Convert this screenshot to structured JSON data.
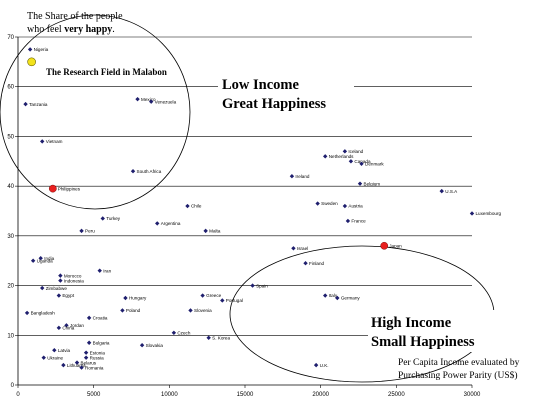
{
  "chart_data": {
    "type": "scatter",
    "ylabel_lines": [
      "The Share of the people",
      "who feel "
    ],
    "ylabel_bold": "very happy",
    "ylabel_tail": ".",
    "xlabel_lines": [
      "Per Capita Income evaluated by",
      "Purchasing Power Parity (US$)"
    ],
    "xlim": [
      0,
      30000
    ],
    "ylim": [
      0,
      70
    ],
    "x_ticks": [
      "0",
      "5000",
      "10000",
      "15000",
      "20000",
      "25000",
      "30000"
    ],
    "y_ticks": [
      "0",
      "10",
      "20",
      "30",
      "40",
      "50",
      "60",
      "70"
    ],
    "gridlines": "horizontal",
    "annotations": {
      "research_field": "The Research Field in Malabon",
      "low_income": [
        "Low Income",
        "Great Happiness"
      ],
      "high_income": [
        "High Income",
        "Small Happiness"
      ]
    },
    "colors": {
      "marker": "#1f1f6e",
      "highlight": "#e8201f",
      "research": "#f2e21b"
    },
    "points": [
      {
        "label": "Nigeria",
        "x": 800,
        "y": 67.5
      },
      {
        "label": "Tanzania",
        "x": 500,
        "y": 56.5
      },
      {
        "label": "Vietnam",
        "x": 1600,
        "y": 49
      },
      {
        "label": "Mexico",
        "x": 7900,
        "y": 57.5
      },
      {
        "label": "Venezuela",
        "x": 8800,
        "y": 57
      },
      {
        "label": "South Africa",
        "x": 7600,
        "y": 43
      },
      {
        "label": "Philippines",
        "x": 2300,
        "y": 39.5,
        "highlight": true
      },
      {
        "label": "Turkey",
        "x": 5600,
        "y": 33.5
      },
      {
        "label": "Chile",
        "x": 11200,
        "y": 36
      },
      {
        "label": "Argentina",
        "x": 9200,
        "y": 32.5
      },
      {
        "label": "Malta",
        "x": 12400,
        "y": 31
      },
      {
        "label": "Peru",
        "x": 4200,
        "y": 31
      },
      {
        "label": "India",
        "x": 1500,
        "y": 25.5
      },
      {
        "label": "Uganda",
        "x": 1000,
        "y": 25
      },
      {
        "label": "Iran",
        "x": 5400,
        "y": 23
      },
      {
        "label": "Morocco",
        "x": 2800,
        "y": 22
      },
      {
        "label": "Indonesia",
        "x": 2800,
        "y": 21
      },
      {
        "label": "Zimbabwe",
        "x": 1600,
        "y": 19.5
      },
      {
        "label": "Egypt",
        "x": 2700,
        "y": 18
      },
      {
        "label": "Hungary",
        "x": 7100,
        "y": 17.5
      },
      {
        "label": "Poland",
        "x": 6900,
        "y": 15
      },
      {
        "label": "Bangladesh",
        "x": 600,
        "y": 14.5
      },
      {
        "label": "Croatia",
        "x": 4700,
        "y": 13.5
      },
      {
        "label": "Jordan",
        "x": 3200,
        "y": 12
      },
      {
        "label": "China",
        "x": 2700,
        "y": 11.5
      },
      {
        "label": "Greece",
        "x": 12200,
        "y": 18
      },
      {
        "label": "Portugal",
        "x": 13500,
        "y": 17
      },
      {
        "label": "Slovenia",
        "x": 11400,
        "y": 15
      },
      {
        "label": "Czech",
        "x": 10300,
        "y": 10.5
      },
      {
        "label": "S. Korea",
        "x": 12600,
        "y": 9.5
      },
      {
        "label": "Slovakia",
        "x": 8200,
        "y": 8
      },
      {
        "label": "Bulgaria",
        "x": 4700,
        "y": 8.5
      },
      {
        "label": "Latvia",
        "x": 2400,
        "y": 7
      },
      {
        "label": "Estonia",
        "x": 4500,
        "y": 6.5
      },
      {
        "label": "Ukraine",
        "x": 1700,
        "y": 5.5
      },
      {
        "label": "Russia",
        "x": 4500,
        "y": 5.5
      },
      {
        "label": "Belarus",
        "x": 3900,
        "y": 4.5
      },
      {
        "label": "Lithuania",
        "x": 3000,
        "y": 4
      },
      {
        "label": "Romania",
        "x": 4200,
        "y": 3.5
      },
      {
        "label": "Spain",
        "x": 15500,
        "y": 20
      },
      {
        "label": "Netherlands",
        "x": 20300,
        "y": 46
      },
      {
        "label": "Iceland",
        "x": 21600,
        "y": 47
      },
      {
        "label": "Canada",
        "x": 22000,
        "y": 45
      },
      {
        "label": "Denmark",
        "x": 22700,
        "y": 44.5
      },
      {
        "label": "Ireland",
        "x": 18100,
        "y": 42
      },
      {
        "label": "Belgium",
        "x": 22600,
        "y": 40.5
      },
      {
        "label": "U.S.A",
        "x": 28000,
        "y": 39
      },
      {
        "label": "Sweden",
        "x": 19800,
        "y": 36.5
      },
      {
        "label": "Austria",
        "x": 21600,
        "y": 36
      },
      {
        "label": "Luxembourg",
        "x": 30000,
        "y": 34.5
      },
      {
        "label": "France",
        "x": 21800,
        "y": 33
      },
      {
        "label": "Israel",
        "x": 18200,
        "y": 27.5
      },
      {
        "label": "Japan",
        "x": 24200,
        "y": 28,
        "highlight": true
      },
      {
        "label": "Finland",
        "x": 19000,
        "y": 24.5
      },
      {
        "label": "Italy",
        "x": 20300,
        "y": 18
      },
      {
        "label": "Germany",
        "x": 21100,
        "y": 17.5
      },
      {
        "label": "U.K.",
        "x": 19700,
        "y": 4
      }
    ],
    "research_point": {
      "x": 900,
      "y": 65
    }
  }
}
